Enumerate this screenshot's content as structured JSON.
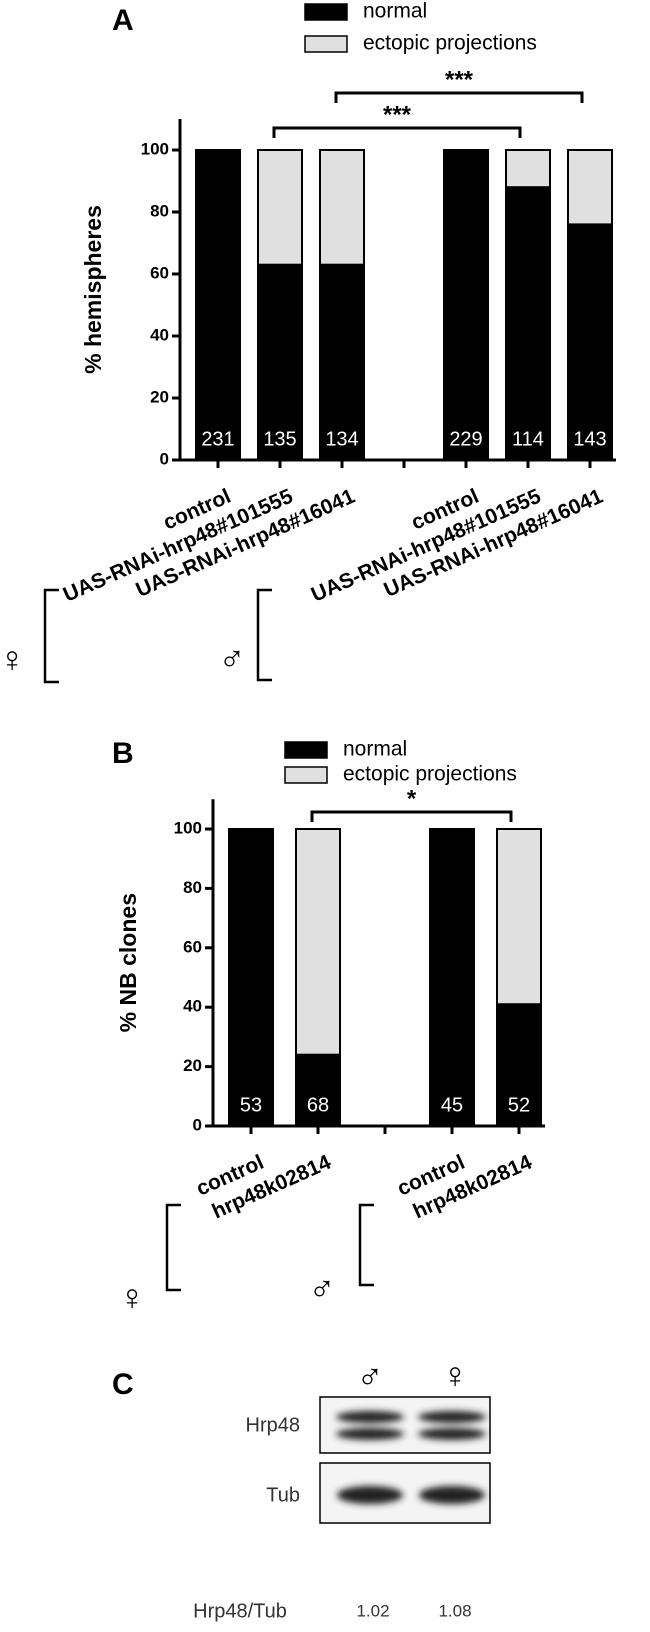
{
  "chart_data": [
    {
      "type": "bar",
      "stacked": true,
      "panel": "A",
      "ylabel": "% hemispheres",
      "categories": [
        "control",
        "UAS-RNAi-hrp48#101555",
        "UAS-RNAi-hrp48#16041",
        null,
        "control",
        "UAS-RNAi-hrp48#101555",
        "UAS-RNAi-hrp48#16041"
      ],
      "series": [
        {
          "name": "normal",
          "color": "#000000",
          "values": [
            100,
            63,
            63,
            null,
            100,
            88,
            76
          ]
        },
        {
          "name": "ectopic projections",
          "color": "#e0e0e0",
          "values": [
            0,
            37,
            37,
            null,
            0,
            12,
            24
          ]
        }
      ],
      "n": [
        231,
        135,
        134,
        null,
        229,
        114,
        143
      ],
      "group_labels": [
        "♀",
        "♂"
      ],
      "annotations": [
        "***",
        "***"
      ],
      "ylim": [
        0,
        110
      ],
      "yticks": [
        0,
        20,
        40,
        60,
        80,
        100
      ]
    },
    {
      "type": "bar",
      "stacked": true,
      "panel": "B",
      "ylabel": "% NB clones",
      "categories": [
        "control",
        "hrp48k02814",
        null,
        "control",
        "hrp48k02814"
      ],
      "series": [
        {
          "name": "normal",
          "color": "#000000",
          "values": [
            100,
            24,
            null,
            100,
            41
          ]
        },
        {
          "name": "ectopic projections",
          "color": "#e0e0e0",
          "values": [
            0,
            76,
            null,
            0,
            59
          ]
        }
      ],
      "n": [
        53,
        68,
        null,
        45,
        52
      ],
      "group_labels": [
        "♀",
        "♂"
      ],
      "annotations": [
        "*"
      ],
      "ylim": [
        0,
        110
      ],
      "yticks": [
        0,
        20,
        40,
        60,
        80,
        100
      ]
    }
  ],
  "blot": {
    "panel": "C",
    "columns": [
      "♂",
      "♀"
    ],
    "rows": [
      "Hrp48",
      "Tub"
    ],
    "ratio_label": "Hrp48/Tub",
    "ratios": [
      1.02,
      1.08
    ]
  }
}
